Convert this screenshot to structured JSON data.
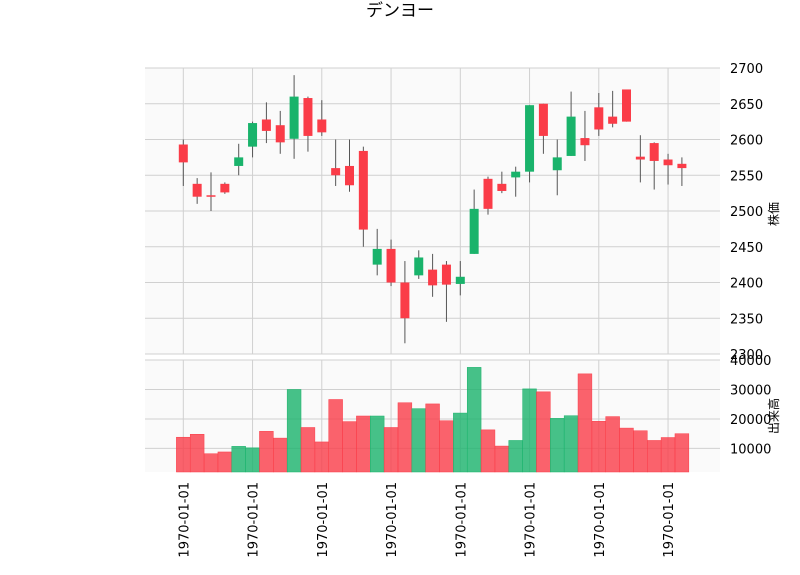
{
  "chart_data": {
    "type": "candlestick",
    "title": "デンヨー",
    "price_ylabel": "株価",
    "volume_ylabel": "出来高",
    "price_ylim": [
      2300,
      2700
    ],
    "price_yticks": [
      2300,
      2350,
      2400,
      2450,
      2500,
      2550,
      2600,
      2650,
      2700
    ],
    "volume_ylim": [
      2000,
      40000
    ],
    "volume_yticks": [
      10000,
      20000,
      30000,
      40000
    ],
    "x_tick_labels": [
      "1970-01-01",
      "1970-01-01",
      "1970-01-01",
      "1970-01-01",
      "1970-01-01",
      "1970-01-01",
      "1970-01-01",
      "1970-01-01"
    ],
    "x_tick_positions": [
      1,
      6,
      11,
      16,
      21,
      26,
      31,
      36
    ],
    "up_color": "#19b36b",
    "down_color": "#fa3c48",
    "grid": true,
    "candles": [
      {
        "o": 2593,
        "h": 2600,
        "l": 2535,
        "c": 2568,
        "v": 13800
      },
      {
        "o": 2538,
        "h": 2546,
        "l": 2510,
        "c": 2520,
        "v": 14800
      },
      {
        "o": 2522,
        "h": 2554,
        "l": 2500,
        "c": 2520,
        "v": 8200
      },
      {
        "o": 2538,
        "h": 2540,
        "l": 2524,
        "c": 2526,
        "v": 8800
      },
      {
        "o": 2563,
        "h": 2594,
        "l": 2550,
        "c": 2575,
        "v": 10700
      },
      {
        "o": 2590,
        "h": 2625,
        "l": 2575,
        "c": 2623,
        "v": 10200
      },
      {
        "o": 2628,
        "h": 2652,
        "l": 2595,
        "c": 2612,
        "v": 15800
      },
      {
        "o": 2620,
        "h": 2640,
        "l": 2580,
        "c": 2596,
        "v": 13500
      },
      {
        "o": 2601,
        "h": 2690,
        "l": 2573,
        "c": 2660,
        "v": 30000
      },
      {
        "o": 2658,
        "h": 2660,
        "l": 2583,
        "c": 2605,
        "v": 17100
      },
      {
        "o": 2628,
        "h": 2655,
        "l": 2605,
        "c": 2610,
        "v": 12200
      },
      {
        "o": 2560,
        "h": 2600,
        "l": 2535,
        "c": 2550,
        "v": 26600
      },
      {
        "o": 2563,
        "h": 2600,
        "l": 2527,
        "c": 2536,
        "v": 19100
      },
      {
        "o": 2584,
        "h": 2590,
        "l": 2450,
        "c": 2474,
        "v": 21000
      },
      {
        "o": 2425,
        "h": 2475,
        "l": 2410,
        "c": 2447,
        "v": 21000
      },
      {
        "o": 2447,
        "h": 2460,
        "l": 2395,
        "c": 2400,
        "v": 17100
      },
      {
        "o": 2400,
        "h": 2430,
        "l": 2315,
        "c": 2350,
        "v": 25500
      },
      {
        "o": 2410,
        "h": 2445,
        "l": 2405,
        "c": 2435,
        "v": 23500
      },
      {
        "o": 2418,
        "h": 2440,
        "l": 2380,
        "c": 2396,
        "v": 25100
      },
      {
        "o": 2425,
        "h": 2430,
        "l": 2345,
        "c": 2397,
        "v": 19400
      },
      {
        "o": 2398,
        "h": 2430,
        "l": 2382,
        "c": 2408,
        "v": 22000
      },
      {
        "o": 2440,
        "h": 2530,
        "l": 2440,
        "c": 2503,
        "v": 37500
      },
      {
        "o": 2545,
        "h": 2548,
        "l": 2495,
        "c": 2503,
        "v": 16300
      },
      {
        "o": 2538,
        "h": 2555,
        "l": 2525,
        "c": 2528,
        "v": 10800
      },
      {
        "o": 2547,
        "h": 2562,
        "l": 2520,
        "c": 2555,
        "v": 12700
      },
      {
        "o": 2555,
        "h": 2648,
        "l": 2540,
        "c": 2648,
        "v": 30200
      },
      {
        "o": 2650,
        "h": 2650,
        "l": 2580,
        "c": 2605,
        "v": 29200
      },
      {
        "o": 2557,
        "h": 2600,
        "l": 2522,
        "c": 2575,
        "v": 20200
      },
      {
        "o": 2577,
        "h": 2667,
        "l": 2577,
        "c": 2632,
        "v": 21100
      },
      {
        "o": 2602,
        "h": 2640,
        "l": 2570,
        "c": 2592,
        "v": 35300
      },
      {
        "o": 2645,
        "h": 2665,
        "l": 2605,
        "c": 2614,
        "v": 19200
      },
      {
        "o": 2632,
        "h": 2668,
        "l": 2617,
        "c": 2622,
        "v": 20800
      },
      {
        "o": 2670,
        "h": 2670,
        "l": 2625,
        "c": 2625,
        "v": 16900
      },
      {
        "o": 2576,
        "h": 2606,
        "l": 2540,
        "c": 2572,
        "v": 16000
      },
      {
        "o": 2595,
        "h": 2596,
        "l": 2530,
        "c": 2570,
        "v": 12700
      },
      {
        "o": 2572,
        "h": 2580,
        "l": 2537,
        "c": 2564,
        "v": 13700
      },
      {
        "o": 2566,
        "h": 2575,
        "l": 2535,
        "c": 2560,
        "v": 15000
      }
    ]
  }
}
